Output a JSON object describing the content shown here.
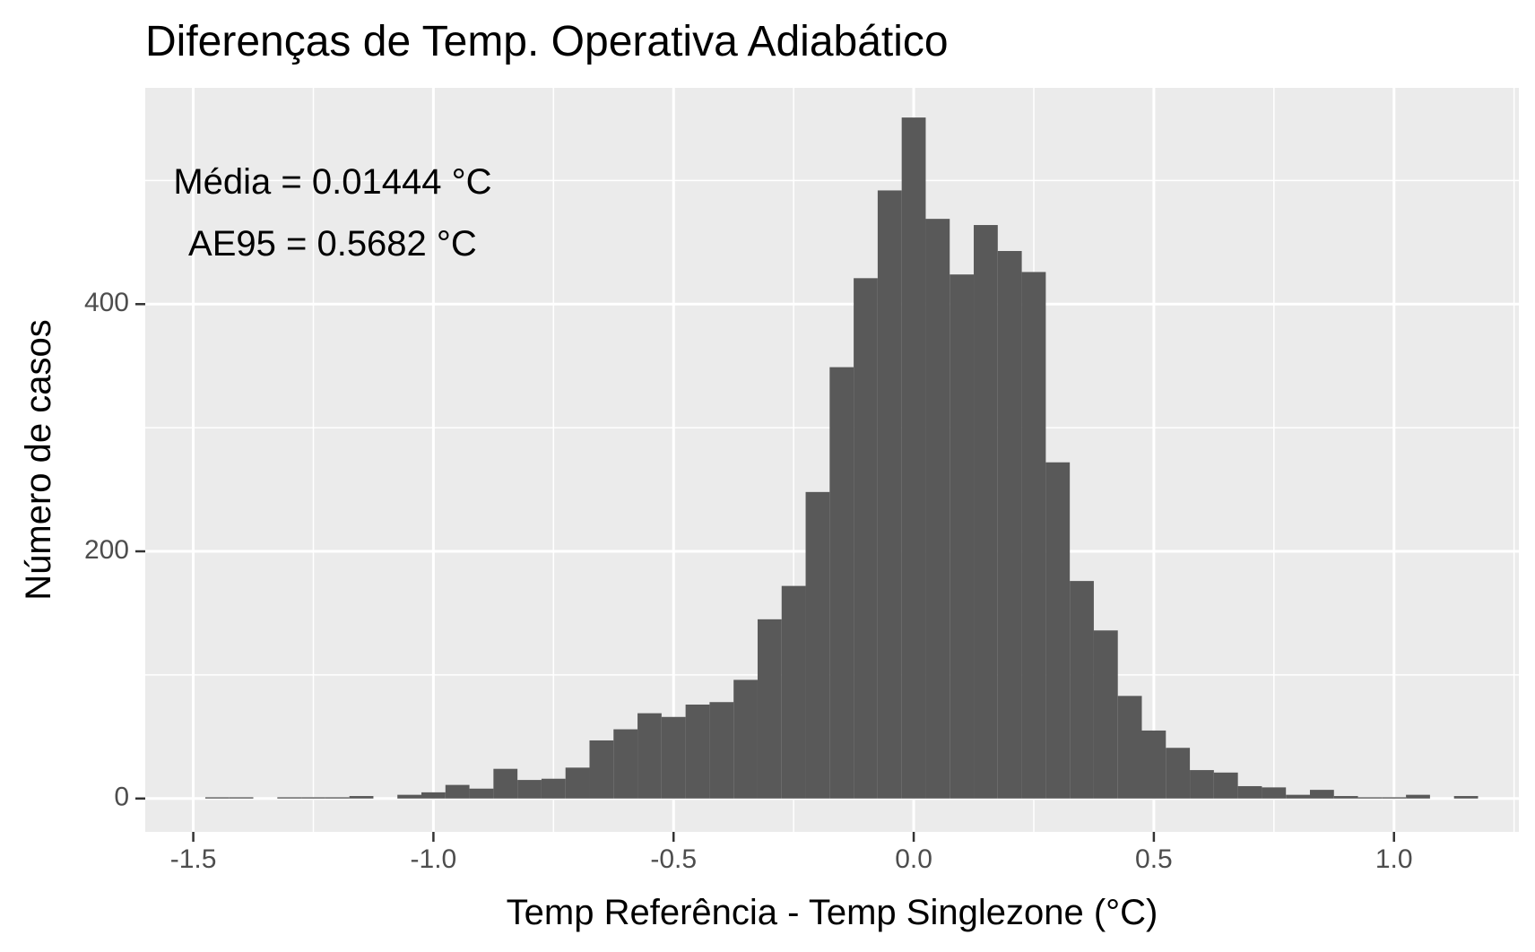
{
  "chart_data": {
    "type": "bar",
    "title": "Diferenças de Temp. Operativa Adiabático",
    "xlabel": "Temp Referência - Temp Singlezone (°C)",
    "ylabel": "Número de casos",
    "xlim": [
      -1.6,
      1.26
    ],
    "ylim": [
      -27,
      575
    ],
    "x_ticks": [
      -1.5,
      -1.0,
      -0.5,
      0.0,
      0.5,
      1.0
    ],
    "x_tick_labels": [
      "-1.5",
      "-1.0",
      "-0.5",
      "0.0",
      "0.5",
      "1.0"
    ],
    "y_ticks": [
      0,
      200,
      400
    ],
    "y_tick_labels": [
      "0",
      "200",
      "400"
    ],
    "x_minor_ticks": [
      -1.25,
      -0.75,
      -0.25,
      0.25,
      0.75,
      1.25
    ],
    "y_minor_ticks": [
      100,
      300,
      500
    ],
    "bin_width": 0.05,
    "bin_centers": [
      -1.45,
      -1.4,
      -1.35,
      -1.3,
      -1.25,
      -1.2,
      -1.15,
      -1.1,
      -1.05,
      -1.0,
      -0.95,
      -0.9,
      -0.85,
      -0.8,
      -0.75,
      -0.7,
      -0.65,
      -0.6,
      -0.55,
      -0.5,
      -0.45,
      -0.4,
      -0.35,
      -0.3,
      -0.25,
      -0.2,
      -0.15,
      -0.1,
      -0.05,
      0.0,
      0.05,
      0.1,
      0.15,
      0.2,
      0.25,
      0.3,
      0.35,
      0.4,
      0.45,
      0.5,
      0.55,
      0.6,
      0.65,
      0.7,
      0.75,
      0.8,
      0.85,
      0.9,
      0.95,
      1.0,
      1.05,
      1.1,
      1.15
    ],
    "values": [
      1,
      1,
      0,
      1,
      1,
      1,
      2,
      0,
      3,
      5,
      11,
      8,
      24,
      15,
      16,
      25,
      47,
      56,
      69,
      66,
      76,
      78,
      96,
      145,
      172,
      248,
      349,
      421,
      492,
      551,
      469,
      424,
      464,
      443,
      426,
      272,
      176,
      136,
      83,
      55,
      41,
      23,
      21,
      10,
      9,
      3,
      7,
      2,
      1,
      1,
      3,
      0,
      2
    ],
    "grid": true,
    "bar_color": "#595959",
    "panel_background": "#ebebeb",
    "grid_color": "#ffffff",
    "annotations": [
      {
        "text": "Média = 0.01444 °C",
        "x": -1.21,
        "y": 497
      },
      {
        "text": "AE95 = 0.5682 °C",
        "x": -1.21,
        "y": 447
      }
    ]
  }
}
